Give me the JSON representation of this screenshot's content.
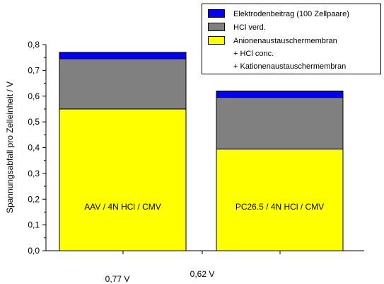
{
  "chart_data": {
    "type": "bar",
    "stacked": true,
    "ylabel": "Spannungsabfall pro Zelleinheit / V",
    "ylim": [
      0,
      0.8
    ],
    "y_ticks": [
      "0,0",
      "0,1",
      "0,2",
      "0,3",
      "0,4",
      "0,5",
      "0,6",
      "0,7",
      "0,8"
    ],
    "categories": [
      "AAV / 4N HCl / CMV",
      "PC26.5 / 4N HCl / CMV"
    ],
    "bar_labels": [
      "AAV / 4N HCl / CMV",
      "PC26.5 / 4N HCl / CMV"
    ],
    "x_labels": [
      "0,77 V",
      "0,62 V"
    ],
    "series": [
      {
        "name": "Anionenaustauschermembran + HCl conc. + Kationenaustauschermembran",
        "values": [
          0.55,
          0.395
        ],
        "color": "#ffff00"
      },
      {
        "name": "HCl verd.",
        "values": [
          0.195,
          0.2
        ],
        "color": "#808080"
      },
      {
        "name": "Elektrodenbeitrag (100 Zellpaare)",
        "values": [
          0.025,
          0.025
        ],
        "color": "#0000ff"
      }
    ],
    "legend_position": "top-right"
  },
  "legend": {
    "items": [
      {
        "lines": [
          "Elektrodenbeitrag (100 Zellpaare)"
        ],
        "color": "#0000ff"
      },
      {
        "lines": [
          "HCl verd."
        ],
        "color": "#808080"
      },
      {
        "lines": [
          "Anionenaustauschermembran",
          "+ HCl conc.",
          "+ Kationenaustauschermembran"
        ],
        "color": "#ffff00"
      }
    ]
  }
}
